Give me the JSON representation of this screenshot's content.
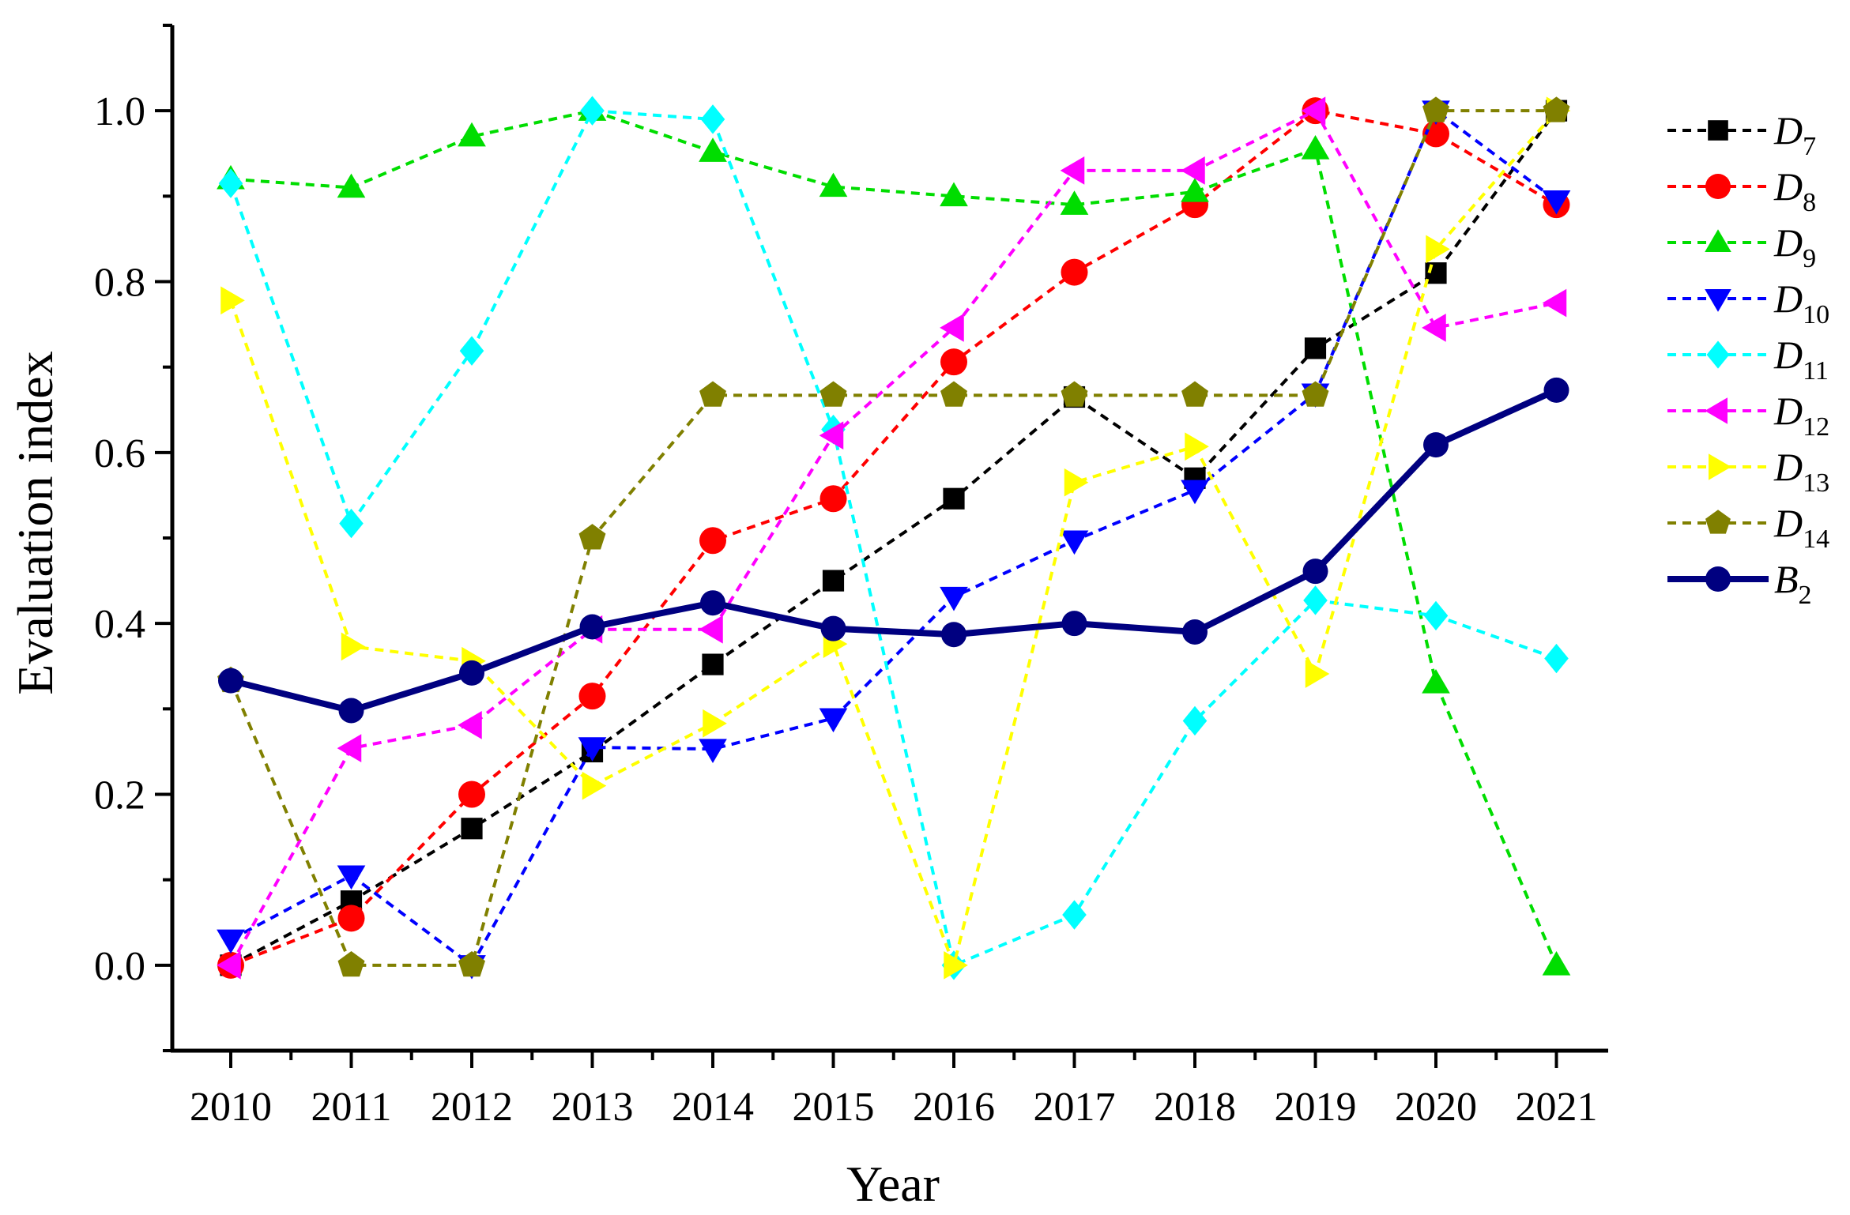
{
  "chart_data": {
    "type": "line",
    "title": "",
    "xlabel": "Year",
    "ylabel": "Evaluation index",
    "categories": [
      "2010",
      "2011",
      "2012",
      "2013",
      "2014",
      "2015",
      "2016",
      "2017",
      "2018",
      "2019",
      "2020",
      "2021"
    ],
    "ylim": [
      -0.1,
      1.1
    ],
    "yticks": [
      "0.0",
      "0.2",
      "0.4",
      "0.6",
      "0.8",
      "1.0"
    ],
    "grid": false,
    "legend_position": "right",
    "series": [
      {
        "name": "D7",
        "label_main": "D",
        "label_sub": "7",
        "color": "#000000",
        "marker": "square",
        "dashed": true,
        "values": [
          0.0,
          0.075,
          0.16,
          0.25,
          0.352,
          0.45,
          0.546,
          0.665,
          0.57,
          0.722,
          0.81,
          1.0
        ]
      },
      {
        "name": "D8",
        "label_main": "D",
        "label_sub": "8",
        "color": "#ff0000",
        "marker": "circle",
        "dashed": true,
        "values": [
          0.0,
          0.055,
          0.2,
          0.315,
          0.497,
          0.546,
          0.706,
          0.811,
          0.89,
          1.0,
          0.973,
          0.89
        ]
      },
      {
        "name": "D9",
        "label_main": "D",
        "label_sub": "9",
        "color": "#00dd00",
        "marker": "triangle-up",
        "dashed": true,
        "values": [
          0.92,
          0.91,
          0.97,
          1.0,
          0.952,
          0.911,
          0.9,
          0.89,
          0.905,
          0.955,
          0.33,
          0.0
        ]
      },
      {
        "name": "D10",
        "label_main": "D",
        "label_sub": "10",
        "color": "#0000ff",
        "marker": "triangle-down",
        "dashed": true,
        "values": [
          0.03,
          0.105,
          0.0,
          0.255,
          0.253,
          0.289,
          0.431,
          0.497,
          0.556,
          0.669,
          1.0,
          0.895
        ]
      },
      {
        "name": "D11",
        "label_main": "D",
        "label_sub": "11",
        "color": "#00ffff",
        "marker": "diamond",
        "dashed": true,
        "values": [
          0.915,
          0.517,
          0.719,
          1.0,
          0.99,
          0.627,
          0.0,
          0.059,
          0.286,
          0.427,
          0.409,
          0.359
        ]
      },
      {
        "name": "D12",
        "label_main": "D",
        "label_sub": "12",
        "color": "#ff00ff",
        "marker": "triangle-left",
        "dashed": true,
        "values": [
          0.0,
          0.254,
          0.281,
          0.393,
          0.393,
          0.62,
          0.746,
          0.93,
          0.93,
          1.0,
          0.746,
          0.775
        ]
      },
      {
        "name": "D13",
        "label_main": "D",
        "label_sub": "13",
        "color": "#ffff00",
        "marker": "triangle-right",
        "dashed": true,
        "values": [
          0.778,
          0.373,
          0.356,
          0.21,
          0.283,
          0.376,
          0.0,
          0.565,
          0.607,
          0.341,
          0.838,
          1.0
        ]
      },
      {
        "name": "D14",
        "label_main": "D",
        "label_sub": "14",
        "color": "#808000",
        "marker": "pentagon",
        "dashed": true,
        "values": [
          0.333,
          0.0,
          0.0,
          0.5,
          0.667,
          0.667,
          0.667,
          0.667,
          0.667,
          0.667,
          1.0,
          1.0
        ]
      },
      {
        "name": "B2",
        "label_main": "B",
        "label_sub": "2",
        "color": "#000080",
        "marker": "circle",
        "dashed": false,
        "values": [
          0.333,
          0.298,
          0.342,
          0.396,
          0.424,
          0.394,
          0.387,
          0.4,
          0.39,
          0.461,
          0.609,
          0.673
        ]
      }
    ]
  }
}
